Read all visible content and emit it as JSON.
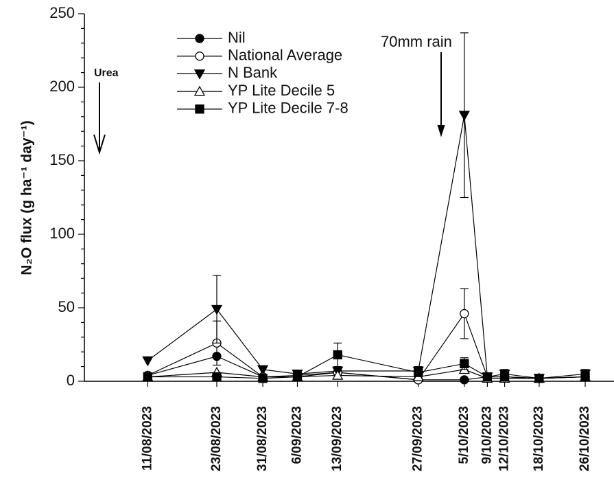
{
  "chart_data": {
    "type": "line",
    "y_label": "N₂O flux (g ha⁻¹ day⁻¹)",
    "x": [
      "11/08/2023",
      "23/08/2023",
      "31/08/2023",
      "6/09/2023",
      "13/09/2023",
      "27/09/2023",
      "5/10/2023",
      "9/10/2023",
      "12/10/2023",
      "18/10/2023",
      "26/10/2023"
    ],
    "xlim": [
      "31/07/2023",
      "31/10/2023"
    ],
    "ylim": [
      0,
      250
    ],
    "yticks": [
      0,
      50,
      100,
      150,
      200,
      250
    ],
    "grid": false,
    "legend": "upper left",
    "series": [
      {
        "name": "Nil",
        "color": "#000000",
        "marker": "circle",
        "filled": true,
        "values": [
          4,
          17,
          3,
          3,
          6,
          1,
          1,
          3,
          3,
          2,
          3
        ]
      },
      {
        "name": "National Average",
        "color": "#000000",
        "marker": "circle",
        "filled": false,
        "values": [
          4,
          26,
          3,
          4,
          6,
          1,
          46,
          3,
          3,
          2,
          3
        ],
        "errors": [
          null,
          15,
          null,
          null,
          null,
          null,
          17,
          null,
          null,
          null,
          null
        ]
      },
      {
        "name": "N Bank",
        "color": "#000000",
        "marker": "triangle-down",
        "filled": true,
        "values": [
          14,
          49,
          8,
          5,
          7,
          7,
          181,
          3,
          5,
          2,
          5
        ],
        "errors": [
          null,
          23,
          null,
          null,
          null,
          3,
          56,
          null,
          3,
          null,
          3
        ]
      },
      {
        "name": "YP Lite Decile 5",
        "color": "#000000",
        "marker": "triangle-up",
        "filled": false,
        "values": [
          3,
          6,
          3,
          3,
          4,
          3,
          8,
          2,
          2,
          2,
          3
        ]
      },
      {
        "name": "YP Lite Decile 7-8",
        "color": "#000000",
        "marker": "square",
        "filled": true,
        "values": [
          3,
          3,
          2,
          3,
          18,
          6,
          12,
          3,
          3,
          2,
          3
        ],
        "errors": [
          null,
          null,
          null,
          null,
          8,
          null,
          4,
          null,
          null,
          null,
          null
        ]
      }
    ],
    "annotations": [
      {
        "text": "Urea",
        "x": "11/08/2023"
      },
      {
        "text": "70mm rain",
        "x": "5/10/2023"
      }
    ]
  }
}
